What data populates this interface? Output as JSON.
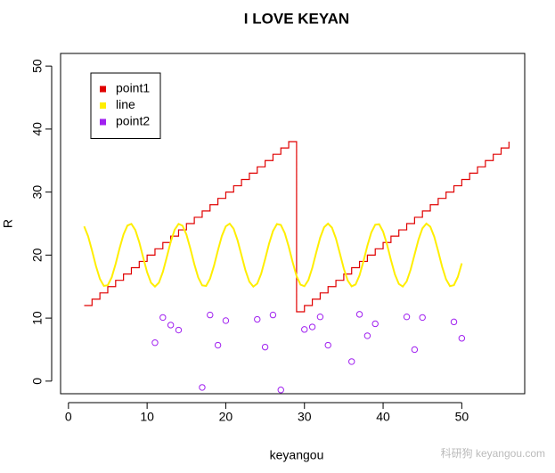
{
  "chart_data": {
    "type": "line",
    "title": "I LOVE KEYAN",
    "x_label": "keyangou",
    "y_label": "R",
    "xlim": [
      -1,
      58
    ],
    "xticks": [
      0,
      10,
      20,
      30,
      40,
      50
    ],
    "ylim": [
      -2,
      52
    ],
    "yticks": [
      0,
      10,
      20,
      30,
      40,
      50
    ],
    "legend": "top-left",
    "series": [
      {
        "name": "point1",
        "color": "#e00000",
        "style": "step",
        "x": [
          2,
          3,
          4,
          5,
          6,
          7,
          8,
          9,
          10,
          11,
          12,
          13,
          14,
          15,
          16,
          17,
          18,
          19,
          20,
          21,
          22,
          23,
          24,
          25,
          26,
          27,
          28,
          29,
          30,
          31,
          32,
          33,
          34,
          35,
          36,
          37,
          38,
          39,
          40,
          41,
          42,
          43,
          44,
          45,
          46,
          47,
          48,
          49,
          50,
          51,
          52,
          53,
          54,
          55,
          56
        ],
        "values": [
          12,
          13,
          14,
          15,
          16,
          17,
          18,
          19,
          20,
          21,
          22,
          23,
          24,
          25,
          26,
          27,
          28,
          29,
          30,
          31,
          32,
          33,
          34,
          35,
          36,
          37,
          38,
          11,
          12,
          13,
          14,
          15,
          16,
          17,
          18,
          19,
          20,
          21,
          22,
          23,
          24,
          25,
          26,
          27,
          28,
          29,
          30,
          31,
          32,
          33,
          34,
          35,
          36,
          37,
          38
        ]
      },
      {
        "name": "line",
        "color": "#ffee00",
        "style": "line",
        "x": [
          2,
          2.5,
          3,
          3.5,
          4,
          4.5,
          5,
          5.5,
          6,
          6.5,
          7,
          7.5,
          8,
          8.5,
          9,
          9.5,
          10,
          10.5,
          11,
          11.5,
          12,
          12.5,
          13,
          13.5,
          14,
          14.5,
          15,
          15.5,
          16,
          16.5,
          17,
          17.5,
          18,
          18.5,
          19,
          19.5,
          20,
          20.5,
          21,
          21.5,
          22,
          22.5,
          23,
          23.5,
          24,
          24.5,
          25,
          25.5,
          26,
          26.5,
          27,
          27.5,
          28,
          28.5,
          29,
          29.5,
          30,
          30.5,
          31,
          31.5,
          32,
          32.5,
          33,
          33.5,
          34,
          34.5,
          35,
          35.5,
          36,
          36.5,
          37,
          37.5,
          38,
          38.5,
          39,
          39.5,
          40,
          40.5,
          41,
          41.5,
          42,
          42.5,
          43,
          43.5,
          44,
          44.5,
          45,
          45.5,
          46,
          46.5,
          47,
          47.5,
          48,
          48.5,
          49,
          49.5,
          50
        ],
        "values": [
          24.55,
          22.99,
          20.71,
          18.25,
          16.22,
          15.11,
          15.21,
          16.47,
          18.6,
          21.08,
          23.28,
          24.69,
          24.95,
          23.99,
          22.06,
          19.62,
          17.28,
          15.6,
          15,
          15.62,
          17.32,
          19.67,
          22.1,
          24.02,
          24.95,
          24.67,
          23.25,
          21.03,
          18.56,
          16.44,
          15.19,
          15.1,
          16.25,
          18.29,
          20.75,
          23.03,
          24.56,
          24.99,
          24.18,
          22.34,
          19.96,
          17.58,
          15.77,
          15,
          15.47,
          17.04,
          19.34,
          21.8,
          23.81,
          24.92,
          24.78,
          23.49,
          21.35,
          18.88,
          16.68,
          15.3,
          15.06,
          16.03,
          17.98,
          20.42,
          22.76,
          24.42,
          25,
          24.36,
          22.65,
          20.29,
          17.86,
          15.96,
          15.04,
          15.34,
          16.78,
          19.01,
          21.48,
          23.59,
          24.82,
          24.9,
          23.73,
          21.67,
          19.21,
          16.94,
          15.42,
          15.01,
          15.84,
          17.7,
          20.09,
          22.46,
          24.25,
          25,
          24.51,
          22.92,
          20.62,
          18.16,
          16.16,
          15.07,
          15.23,
          16.54,
          18.69
        ]
      },
      {
        "name": "point2",
        "color": "#a020f0",
        "style": "points",
        "x": [
          11,
          12,
          13,
          14,
          17,
          18,
          19,
          20,
          24,
          25,
          26,
          27,
          30,
          31,
          32,
          33,
          36,
          37,
          38,
          39,
          43,
          44,
          45,
          49,
          50
        ],
        "values": [
          6.1,
          10.1,
          8.9,
          8.1,
          -1,
          10.5,
          5.7,
          9.6,
          9.8,
          5.4,
          10.5,
          -1.4,
          8.2,
          8.6,
          10.2,
          5.7,
          3.1,
          10.6,
          7.2,
          9.1,
          10.2,
          5,
          10.1,
          9.4,
          6.8
        ]
      }
    ],
    "watermark": "科研狗 keyangou.com"
  }
}
